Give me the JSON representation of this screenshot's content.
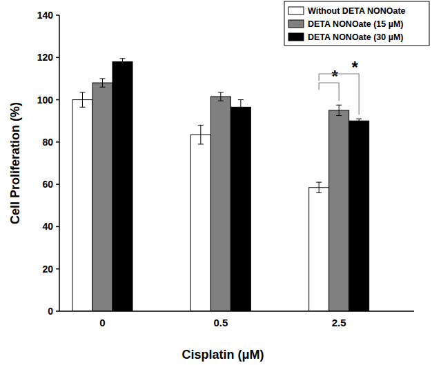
{
  "chart_data": {
    "type": "bar",
    "x_label": "Cisplatin (μM)",
    "y_label": "Cell Proliferation (%)",
    "categories": [
      "0",
      "0.5",
      "2.5"
    ],
    "series": [
      {
        "name": "Without DETA NONOate",
        "color": "#ffffff",
        "values": [
          100,
          83.5,
          58.5
        ],
        "errors": [
          3.5,
          4.5,
          2.5
        ]
      },
      {
        "name": "DETA NONOate (15 µM)",
        "color": "#808080",
        "values": [
          108,
          101.5,
          95
        ],
        "errors": [
          2,
          2,
          2.5
        ]
      },
      {
        "name": "DETA NONOate (30 µM)",
        "color": "#000000",
        "values": [
          118,
          96.5,
          90
        ],
        "errors": [
          1.5,
          3.5,
          1
        ]
      }
    ],
    "annotations": [
      {
        "text": "*"
      },
      {
        "text": "*"
      }
    ],
    "ylim": [
      0,
      140
    ],
    "yticks": [
      0,
      20,
      40,
      60,
      80,
      100,
      120,
      140
    ],
    "grid": false,
    "legend": "upper right"
  }
}
